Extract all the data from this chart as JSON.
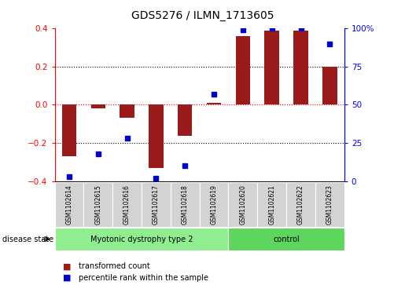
{
  "title": "GDS5276 / ILMN_1713605",
  "samples": [
    "GSM1102614",
    "GSM1102615",
    "GSM1102616",
    "GSM1102617",
    "GSM1102618",
    "GSM1102619",
    "GSM1102620",
    "GSM1102621",
    "GSM1102622",
    "GSM1102623"
  ],
  "bar_values": [
    -0.27,
    -0.02,
    -0.07,
    -0.33,
    -0.165,
    0.01,
    0.36,
    0.39,
    0.39,
    0.2
  ],
  "dot_values_pct": [
    3,
    18,
    28,
    2,
    10,
    57,
    99,
    100,
    100,
    90
  ],
  "bar_color": "#9B1B1B",
  "dot_color": "#0000CC",
  "ylim_left": [
    -0.4,
    0.4
  ],
  "ylim_right": [
    0,
    100
  ],
  "yticks_left": [
    -0.4,
    -0.2,
    0.0,
    0.2,
    0.4
  ],
  "yticks_right": [
    0,
    25,
    50,
    75,
    100
  ],
  "ytick_labels_right": [
    "0",
    "25",
    "50",
    "75",
    "100%"
  ],
  "group1_label": "Myotonic dystrophy type 2",
  "group2_label": "control",
  "group1_indices": [
    0,
    1,
    2,
    3,
    4,
    5
  ],
  "group2_indices": [
    6,
    7,
    8,
    9
  ],
  "disease_state_label": "disease state",
  "legend_bar_label": "transformed count",
  "legend_dot_label": "percentile rank within the sample",
  "background_color": "#ffffff",
  "plot_bg_color": "#ffffff",
  "group1_bg": "#90EE90",
  "group2_bg": "#5CD65C",
  "sample_box_bg": "#d3d3d3",
  "bar_width": 0.5
}
